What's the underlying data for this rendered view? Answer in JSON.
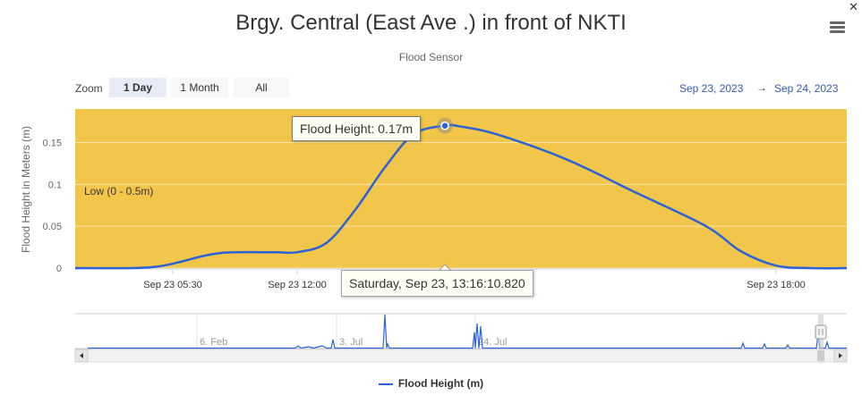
{
  "header": {
    "title": "Brgy. Central (East Ave .) in front of NKTI",
    "subtitle": "Flood Sensor"
  },
  "zoom": {
    "label": "Zoom",
    "buttons": [
      "1 Day",
      "1 Month",
      "All"
    ],
    "active": "1 Day"
  },
  "range": {
    "from": "Sep 23, 2023",
    "arrow": "→",
    "to": "Sep 24, 2023"
  },
  "tooltip": {
    "text": "Flood Height: 0.17m",
    "crosshair_label": "Saturday, Sep 23, 13:16:10.820"
  },
  "legend": {
    "label": "Flood Height (m)"
  },
  "colors": {
    "band": "#f2c64a",
    "line": "#2b63d6",
    "axis_text": "#666666"
  },
  "chart_data": {
    "type": "area",
    "title": "Brgy. Central (East Ave .) in front of NKTI",
    "subtitle": "Flood Sensor",
    "ylabel": "Flood Height in Meters (m)",
    "xlabel": "",
    "ylim": [
      0,
      0.19
    ],
    "yticks": [
      0,
      0.05,
      0.1,
      0.15
    ],
    "xticks": [
      "Sep 23 05:30",
      "Sep 23 12:00",
      "Sep 23 18:00"
    ],
    "grid": true,
    "legend_position": "bottom-center",
    "plot_band": {
      "label": "Low (0 - 0.5m)",
      "from": 0,
      "to": 0.5,
      "color": "#f2c64a"
    },
    "series": [
      {
        "name": "Flood Height (m)",
        "color": "#2b63d6",
        "x": [
          "02:00",
          "04:00",
          "05:00",
          "06:00",
          "07:00",
          "08:00",
          "09:00",
          "10:00",
          "11:00",
          "12:00",
          "12:15",
          "12:30",
          "12:45",
          "13:00",
          "13:16",
          "13:30",
          "14:00",
          "15:00",
          "16:00",
          "17:00",
          "17:30",
          "18:00",
          "18:30",
          "19:00"
        ],
        "y": [
          0,
          0,
          0.002,
          0.008,
          0.014,
          0.018,
          0.019,
          0.019,
          0.019,
          0.019,
          0.03,
          0.07,
          0.12,
          0.16,
          0.17,
          0.169,
          0.16,
          0.13,
          0.09,
          0.05,
          0.02,
          0.003,
          0,
          0
        ]
      }
    ],
    "navigator": {
      "labels": [
        "6. Feb",
        "3. Jul",
        "24. Jul"
      ]
    }
  }
}
